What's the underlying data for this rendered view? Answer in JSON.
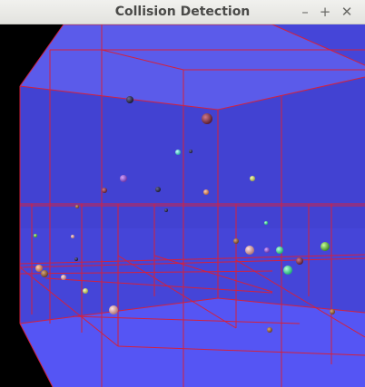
{
  "window": {
    "title": "Collision Detection",
    "controls": {
      "minimize": "–",
      "maximize": "+",
      "close": "✕"
    }
  },
  "scene": {
    "background": "#000000",
    "wall_color": "#4343d6",
    "floor_color": "#5454f3",
    "ceiling_color": "#5a5ae8",
    "grid_color": "#d4213c"
  }
}
